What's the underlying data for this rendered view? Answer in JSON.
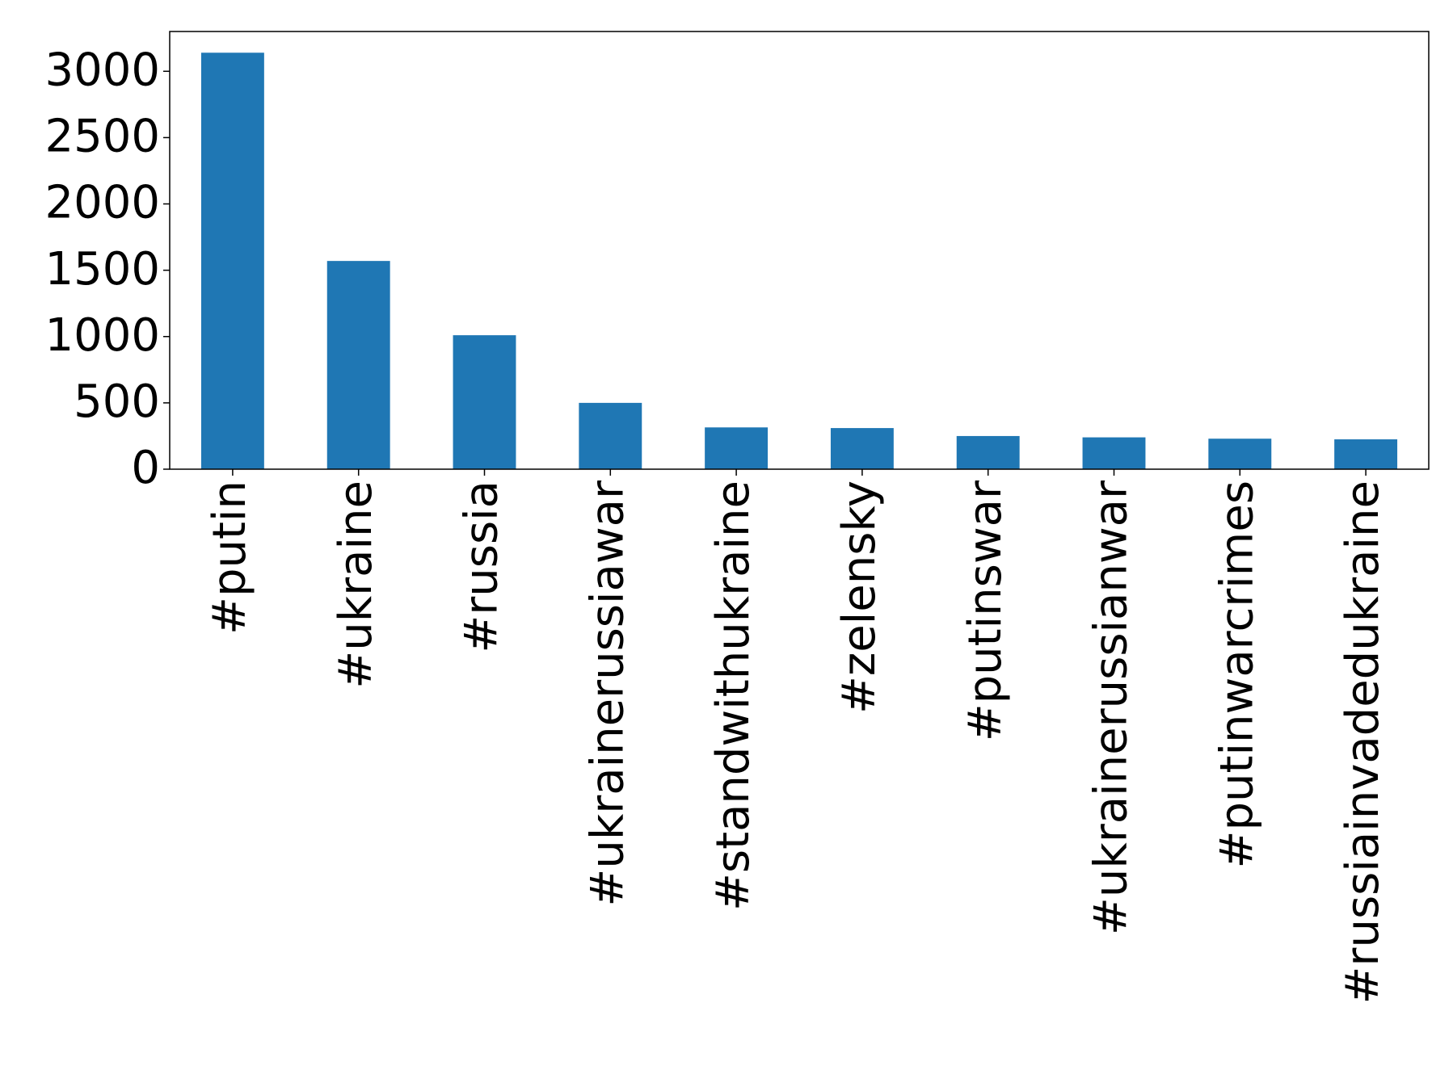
{
  "chart_data": {
    "type": "bar",
    "categories": [
      "#putin",
      "#ukraine",
      "#russia",
      "#ukrainerussiawar",
      "#standwithukraine",
      "#zelensky",
      "#putinswar",
      "#ukrainerussianwar",
      "#putinwarcrimes",
      "#russiainvadedukraine"
    ],
    "values": [
      3140,
      1570,
      1010,
      500,
      315,
      310,
      250,
      240,
      230,
      225
    ],
    "color": "#1f77b4",
    "ylim": [
      0,
      3300
    ],
    "yticks": [
      0,
      500,
      1000,
      1500,
      2000,
      2500,
      3000
    ],
    "grid": false
  }
}
